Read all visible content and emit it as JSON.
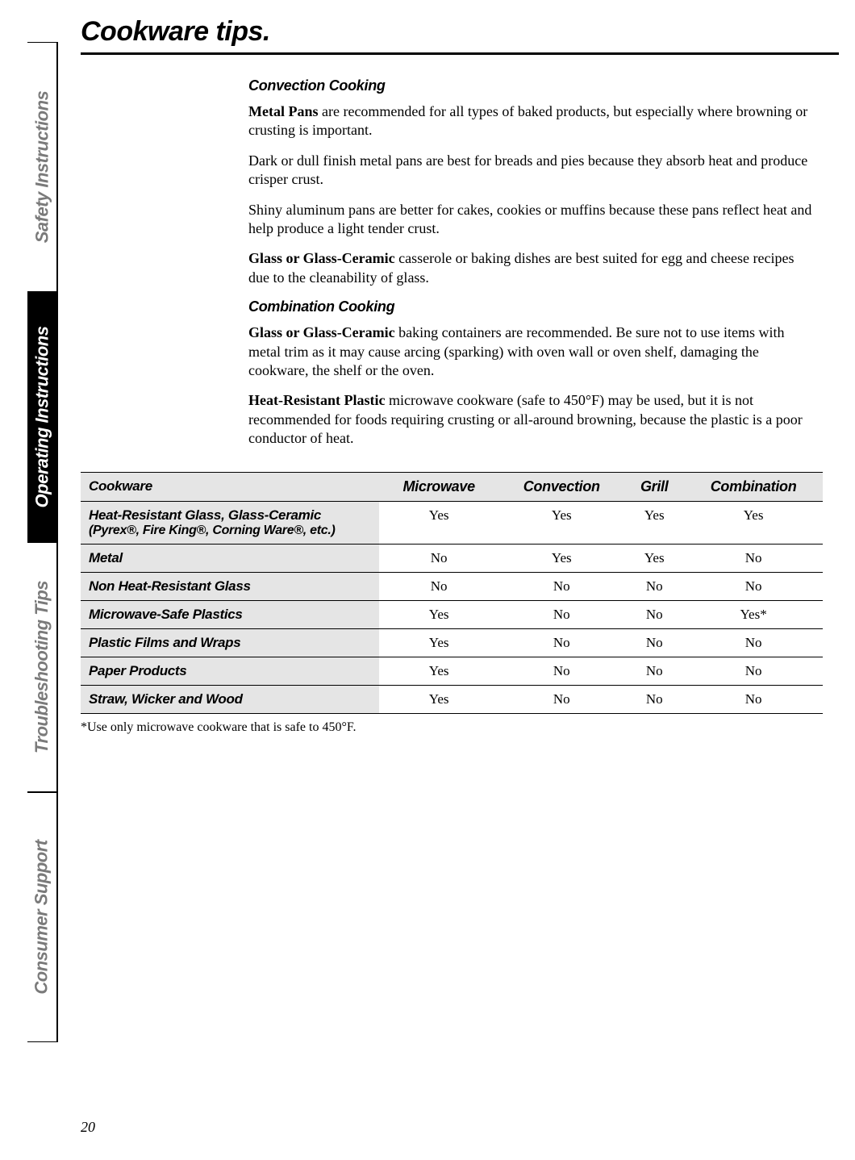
{
  "sidebar": {
    "tabs": [
      {
        "label": "Safety Instructions",
        "active": false
      },
      {
        "label": "Operating Instructions",
        "active": true
      },
      {
        "label": "Troubleshooting Tips",
        "active": false
      },
      {
        "label": "Consumer Support",
        "active": false
      }
    ]
  },
  "page_title": "Cookware tips.",
  "sections": [
    {
      "heading": "Convection Cooking",
      "paragraphs": [
        {
          "bold_lead": "Metal Pans",
          "rest": " are recommended for all types of baked products, but especially where browning or crusting is important."
        },
        {
          "bold_lead": "",
          "rest": "Dark or dull finish metal pans are best for breads and pies because they absorb heat and produce crisper crust."
        },
        {
          "bold_lead": "",
          "rest": "Shiny aluminum pans are better for cakes, cookies or muffins because these pans reflect heat and help produce a light tender crust."
        },
        {
          "bold_lead": "Glass or Glass-Ceramic",
          "rest": " casserole or baking dishes are best suited for egg and cheese recipes due to the cleanability of glass."
        }
      ]
    },
    {
      "heading": "Combination Cooking",
      "paragraphs": [
        {
          "bold_lead": "Glass or Glass-Ceramic",
          "rest": " baking containers are recommended. Be sure not to use items with metal trim as it may cause arcing (sparking) with oven wall or oven shelf, damaging the cookware, the shelf or the oven."
        },
        {
          "bold_lead": "Heat-Resistant Plastic",
          "rest": " microwave cookware (safe to 450°F) may be used, but it is not recommended for foods requiring crusting or all-around browning, because the plastic is a poor conductor of heat."
        }
      ]
    }
  ],
  "table": {
    "columns": [
      "Cookware",
      "Microwave",
      "Convection",
      "Grill",
      "Combination"
    ],
    "rows": [
      {
        "label": "Heat-Resistant Glass, Glass-Ceramic",
        "sublabel": "(Pyrex®, Fire King®, Corning Ware®, etc.)",
        "values": [
          "Yes",
          "Yes",
          "Yes",
          "Yes"
        ]
      },
      {
        "label": "Metal",
        "sublabel": "",
        "values": [
          "No",
          "Yes",
          "Yes",
          "No"
        ]
      },
      {
        "label": "Non Heat-Resistant Glass",
        "sublabel": "",
        "values": [
          "No",
          "No",
          "No",
          "No"
        ]
      },
      {
        "label": "Microwave-Safe Plastics",
        "sublabel": "",
        "values": [
          "Yes",
          "No",
          "No",
          "Yes*"
        ]
      },
      {
        "label": "Plastic Films and Wraps",
        "sublabel": "",
        "values": [
          "Yes",
          "No",
          "No",
          "No"
        ]
      },
      {
        "label": "Paper Products",
        "sublabel": "",
        "values": [
          "Yes",
          "No",
          "No",
          "No"
        ]
      },
      {
        "label": "Straw, Wicker and Wood",
        "sublabel": "",
        "values": [
          "Yes",
          "No",
          "No",
          "No"
        ]
      }
    ]
  },
  "footnote": "*Use only microwave cookware that is safe to 450°F.",
  "page_number": "20"
}
